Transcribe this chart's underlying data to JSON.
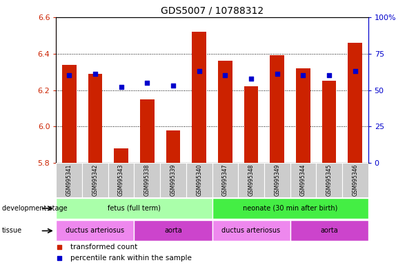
{
  "title": "GDS5007 / 10788312",
  "samples": [
    "GSM995341",
    "GSM995342",
    "GSM995343",
    "GSM995338",
    "GSM995339",
    "GSM995340",
    "GSM995347",
    "GSM995348",
    "GSM995349",
    "GSM995344",
    "GSM995345",
    "GSM995346"
  ],
  "red_values": [
    6.34,
    6.29,
    5.88,
    6.15,
    5.98,
    6.52,
    6.36,
    6.22,
    6.39,
    6.32,
    6.25,
    6.46
  ],
  "blue_percentile": [
    60,
    61,
    52,
    55,
    53,
    63,
    60,
    58,
    61,
    60,
    60,
    63
  ],
  "ylim_left": [
    5.8,
    6.6
  ],
  "ylim_right": [
    0,
    100
  ],
  "yticks_left": [
    5.8,
    6.0,
    6.2,
    6.4,
    6.6
  ],
  "yticks_right": [
    0,
    25,
    50,
    75,
    100
  ],
  "ytick_labels_right": [
    "0",
    "25",
    "50",
    "75",
    "100%"
  ],
  "red_color": "#cc2200",
  "blue_color": "#0000cc",
  "bar_baseline": 5.8,
  "dev_stage_groups": [
    {
      "label": "fetus (full term)",
      "start": 0,
      "end": 6,
      "color": "#aaffaa"
    },
    {
      "label": "neonate (30 min after birth)",
      "start": 6,
      "end": 12,
      "color": "#44ee44"
    }
  ],
  "tissue_groups": [
    {
      "label": "ductus arteriosus",
      "start": 0,
      "end": 3,
      "color": "#ee88ee"
    },
    {
      "label": "aorta",
      "start": 3,
      "end": 6,
      "color": "#cc44cc"
    },
    {
      "label": "ductus arteriosus",
      "start": 6,
      "end": 9,
      "color": "#ee88ee"
    },
    {
      "label": "aorta",
      "start": 9,
      "end": 12,
      "color": "#cc44cc"
    }
  ],
  "legend_red_label": "transformed count",
  "legend_blue_label": "percentile rank within the sample",
  "tick_color_left": "#cc2200",
  "tick_color_right": "#0000cc",
  "title_fontsize": 10,
  "bar_width": 0.55,
  "sample_box_color": "#cccccc",
  "grid_yticks": [
    6.0,
    6.2,
    6.4
  ]
}
